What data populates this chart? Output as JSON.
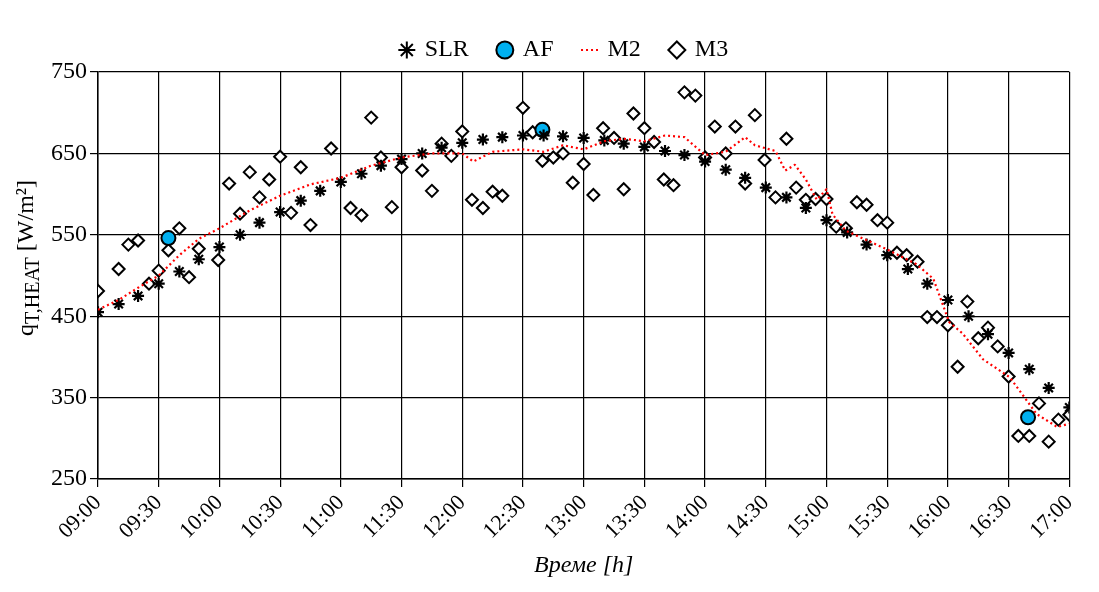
{
  "chart_data": {
    "type": "scatter",
    "xlabel": "Време [h]",
    "ylabel": "q$_{T,HEAT}$ [W/m²]",
    "xlim": [
      9,
      17
    ],
    "ylim": [
      250,
      750
    ],
    "xticks": [
      {
        "value": 9,
        "label": "09:00"
      },
      {
        "value": 9.5,
        "label": "09:30"
      },
      {
        "value": 10,
        "label": "10:00"
      },
      {
        "value": 10.5,
        "label": "10:30"
      },
      {
        "value": 11,
        "label": "11:00"
      },
      {
        "value": 11.5,
        "label": "11:30"
      },
      {
        "value": 12,
        "label": "12:00"
      },
      {
        "value": 12.5,
        "label": "12:30"
      },
      {
        "value": 13,
        "label": "13:00"
      },
      {
        "value": 13.5,
        "label": "13:30"
      },
      {
        "value": 14,
        "label": "14:00"
      },
      {
        "value": 14.5,
        "label": "14:30"
      },
      {
        "value": 15,
        "label": "15:00"
      },
      {
        "value": 15.5,
        "label": "15:30"
      },
      {
        "value": 16,
        "label": "16:00"
      },
      {
        "value": 16.5,
        "label": "16:30"
      },
      {
        "value": 17,
        "label": "17:00"
      }
    ],
    "yticks": [
      250,
      350,
      450,
      550,
      650,
      750
    ],
    "grid": true,
    "legend": "top",
    "series": [
      {
        "name": "SLR",
        "type": "scatter",
        "marker": "cross",
        "color": "#000000",
        "x": [
          9,
          9.17,
          9.33,
          9.5,
          9.67,
          9.83,
          10,
          10.17,
          10.33,
          10.5,
          10.67,
          10.83,
          11,
          11.17,
          11.33,
          11.5,
          11.67,
          11.83,
          12,
          12.17,
          12.33,
          12.5,
          12.67,
          12.83,
          13,
          13.17,
          13.33,
          13.5,
          13.67,
          13.83,
          14,
          14.17,
          14.33,
          14.5,
          14.67,
          14.83,
          15,
          15.17,
          15.33,
          15.5,
          15.67,
          15.83,
          16,
          16.17,
          16.33,
          16.5,
          16.67,
          16.83,
          17
        ],
        "values": [
          455,
          465,
          475,
          490,
          505,
          520,
          535,
          550,
          565,
          578,
          592,
          604,
          615,
          625,
          635,
          643,
          650,
          657,
          663,
          667,
          670,
          672,
          672,
          671,
          669,
          666,
          662,
          658,
          653,
          648,
          640,
          630,
          620,
          608,
          596,
          583,
          568,
          553,
          538,
          525,
          508,
          490,
          470,
          450,
          428,
          405,
          385,
          362,
          338
        ]
      },
      {
        "name": "AF",
        "type": "scatter",
        "marker": "circle",
        "color": "#00b0f0",
        "x": [
          9.58,
          12.66,
          16.66
        ],
        "values": [
          546,
          679,
          326
        ]
      },
      {
        "name": "M2",
        "type": "line",
        "marker": "none",
        "line_style": "dotted",
        "color": "#ff0000",
        "x": [
          9,
          9.17,
          9.33,
          9.5,
          9.67,
          9.83,
          10,
          10.25,
          10.5,
          10.75,
          11,
          11.25,
          11.5,
          11.75,
          12,
          12.09,
          12.25,
          12.5,
          12.67,
          12.83,
          13,
          13.17,
          13.33,
          13.5,
          13.67,
          13.83,
          14,
          14.17,
          14.33,
          14.41,
          14.58,
          14.66,
          14.74,
          14.83,
          14.92,
          15,
          15.05,
          15.16,
          15.5,
          15.74,
          15.88,
          16.01,
          16.12,
          16.29,
          16.51,
          16.73,
          16.9,
          17
        ],
        "values": [
          458,
          470,
          485,
          500,
          525,
          545,
          558,
          580,
          598,
          612,
          620,
          635,
          645,
          650,
          650,
          640,
          652,
          655,
          652,
          660,
          655,
          665,
          668,
          665,
          672,
          670,
          648,
          652,
          670,
          660,
          653,
          629,
          636,
          618,
          593,
          606,
          575,
          555,
          532,
          514,
          496,
          443,
          429,
          397,
          375,
          330,
          314,
          318
        ]
      },
      {
        "name": "M3",
        "type": "scatter",
        "marker": "diamond",
        "color": "#000000",
        "x": [
          9,
          9.17,
          9.25,
          9.33,
          9.42,
          9.5,
          9.58,
          9.67,
          9.75,
          9.83,
          9.99,
          10.08,
          10.17,
          10.25,
          10.33,
          10.41,
          10.5,
          10.59,
          10.67,
          10.75,
          10.92,
          11.08,
          11.17,
          11.25,
          11.33,
          11.42,
          11.5,
          11.67,
          11.75,
          11.83,
          11.91,
          12,
          12.08,
          12.17,
          12.25,
          12.33,
          12.5,
          12.58,
          12.66,
          12.75,
          12.83,
          12.91,
          13,
          13.08,
          13.16,
          13.25,
          13.33,
          13.41,
          13.5,
          13.58,
          13.66,
          13.74,
          13.83,
          13.92,
          14,
          14.08,
          14.17,
          14.25,
          14.33,
          14.41,
          14.49,
          14.58,
          14.67,
          14.75,
          14.83,
          14.91,
          15,
          15.08,
          15.16,
          15.25,
          15.33,
          15.42,
          15.5,
          15.58,
          15.66,
          15.75,
          15.83,
          15.91,
          16,
          16.08,
          16.16,
          16.25,
          16.33,
          16.41,
          16.5,
          16.58,
          16.67,
          16.75,
          16.83,
          16.91,
          17
        ],
        "values": [
          481,
          508,
          538,
          543,
          490,
          506,
          531,
          558,
          498,
          533,
          519,
          613,
          576,
          627,
          596,
          618,
          646,
          577,
          633,
          562,
          656,
          583,
          574,
          694,
          645,
          584,
          633,
          629,
          604,
          662,
          647,
          677,
          593,
          583,
          603,
          598,
          706,
          676,
          641,
          645,
          650,
          614,
          637,
          599,
          681,
          669,
          606,
          699,
          681,
          664,
          618,
          611,
          725,
          721,
          645,
          683,
          650,
          683,
          613,
          697,
          642,
          596,
          668,
          608,
          593,
          594,
          594,
          560,
          558,
          590,
          587,
          568,
          565,
          528,
          525,
          517,
          449,
          449,
          439,
          388,
          468,
          423,
          436,
          413,
          376,
          303,
          303,
          343,
          296,
          323,
          329
        ]
      }
    ]
  }
}
